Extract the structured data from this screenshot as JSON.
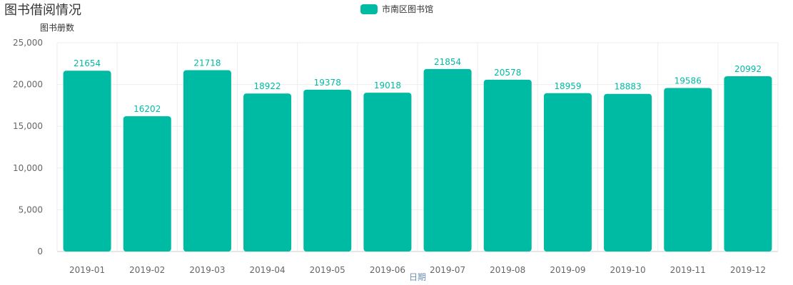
{
  "chart_data": {
    "type": "bar",
    "title": "图书借阅情况",
    "ylabel": "图书册数",
    "xlabel": "日期",
    "categories": [
      "2019-01",
      "2019-02",
      "2019-03",
      "2019-04",
      "2019-05",
      "2019-06",
      "2019-07",
      "2019-08",
      "2019-09",
      "2019-10",
      "2019-11",
      "2019-12"
    ],
    "series": [
      {
        "name": "市南区图书馆",
        "values": [
          21654,
          16202,
          21718,
          18922,
          19378,
          19018,
          21854,
          20578,
          18959,
          18883,
          19586,
          20992
        ]
      }
    ],
    "ylim": [
      0,
      25000
    ],
    "yticks": [
      0,
      5000,
      10000,
      15000,
      20000,
      25000
    ],
    "ytick_labels": [
      "0",
      "5,000",
      "10,000",
      "15,000",
      "20,000",
      "25,000"
    ],
    "grid": true,
    "legend": "top-center",
    "colors": {
      "bar": "#00bba3",
      "grid": "#eeeeee",
      "axis": "#cccccc",
      "xlabel": "#6b8cb6",
      "ylabel": "#333333"
    }
  }
}
